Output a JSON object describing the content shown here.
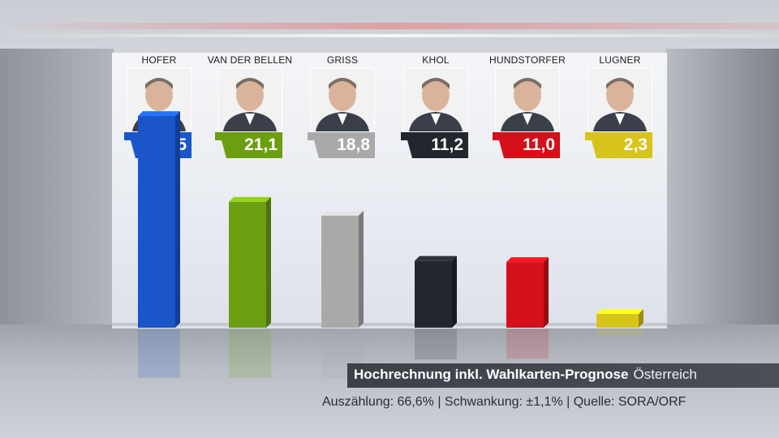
{
  "chart_data": {
    "type": "bar",
    "categories": [
      "HOFER",
      "VAN DER BELLEN",
      "GRISS",
      "KHOL",
      "HUNDSTORFER",
      "LUGNER"
    ],
    "values": [
      35.5,
      21.1,
      18.8,
      11.2,
      11.0,
      2.3
    ],
    "value_labels": [
      "35,5",
      "21,1",
      "18,8",
      "11,2",
      "11,0",
      "2,3"
    ],
    "ylim": [
      0,
      40
    ],
    "grid": false,
    "colors": [
      "#1a56c9",
      "#6c9e12",
      "#a9a9a9",
      "#23262e",
      "#d4101b",
      "#d7c41b"
    ],
    "title": "Hochrechnung inkl. Wahlkarten-Prognose",
    "region": "Österreich",
    "footnote": "Auszählung: 66,6% | Schwankung: ±1,1% | Quelle: SORA/ORF"
  }
}
